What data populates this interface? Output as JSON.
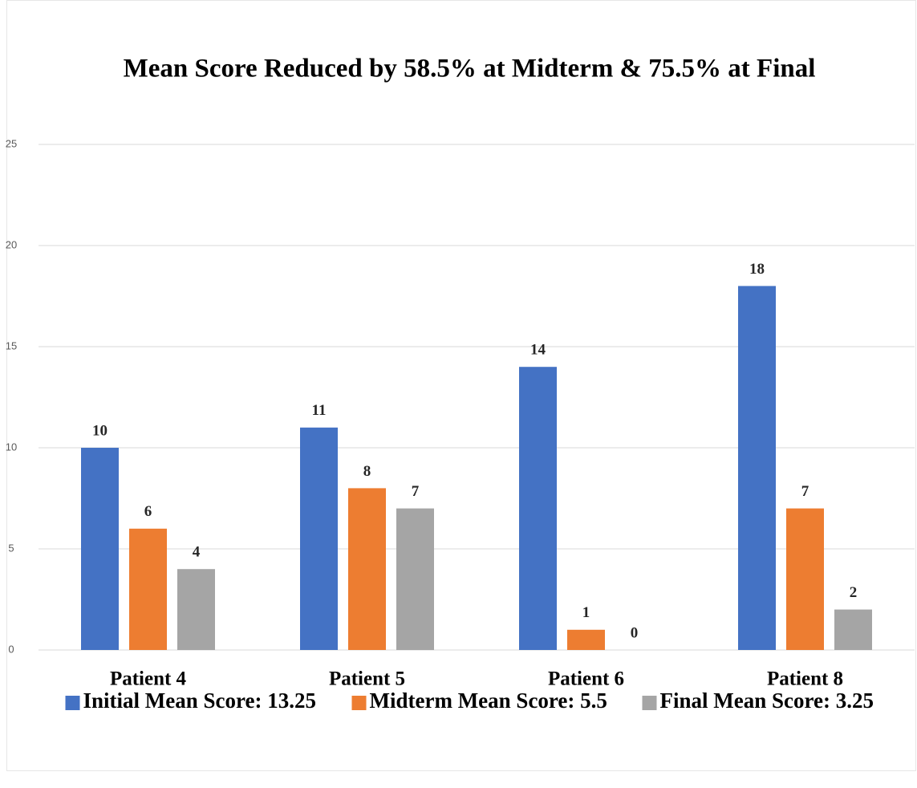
{
  "chart_data": {
    "type": "bar",
    "title": "Mean Score Reduced by 58.5% at Midterm & 75.5% at Final",
    "categories": [
      "Patient 4",
      "Patient 5",
      "Patient 6",
      "Patient 8"
    ],
    "series": [
      {
        "name": "Initial Mean Score: 13.25",
        "color": "#4472c4",
        "values": [
          10,
          11,
          14,
          18
        ]
      },
      {
        "name": "Midterm Mean Score: 5.5",
        "color": "#ed7d31",
        "values": [
          6,
          8,
          1,
          7
        ]
      },
      {
        "name": "Final Mean Score: 3.25",
        "color": "#a5a5a5",
        "values": [
          4,
          7,
          0,
          2
        ]
      }
    ],
    "ylim": [
      0,
      25
    ],
    "yticks": [
      0,
      5,
      10,
      15,
      20,
      25
    ],
    "grid": true,
    "legend": "bottom"
  }
}
